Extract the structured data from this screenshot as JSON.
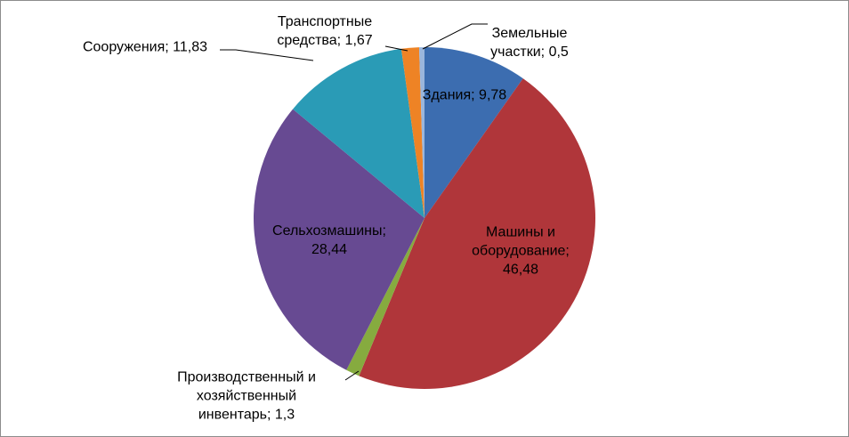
{
  "chart_data": {
    "type": "pie",
    "categories": [
      "Здания",
      "Машины и оборудование",
      "Производственный и хозяйственный инвентарь",
      "Сельхозмашины",
      "Сооружения",
      "Транспортные средства",
      "Земельные участки"
    ],
    "values": [
      9.78,
      46.48,
      1.3,
      28.44,
      11.83,
      1.67,
      0.5
    ],
    "value_labels": [
      "9,78",
      "46,48",
      "1,3",
      "28,44",
      "11,83",
      "1,67",
      "0,5"
    ],
    "label_separator": ";",
    "colors": [
      "#3c6db0",
      "#b0363a",
      "#86ab3f",
      "#674a92",
      "#2a9bb6",
      "#ee8325",
      "#9ab6dc"
    ]
  }
}
